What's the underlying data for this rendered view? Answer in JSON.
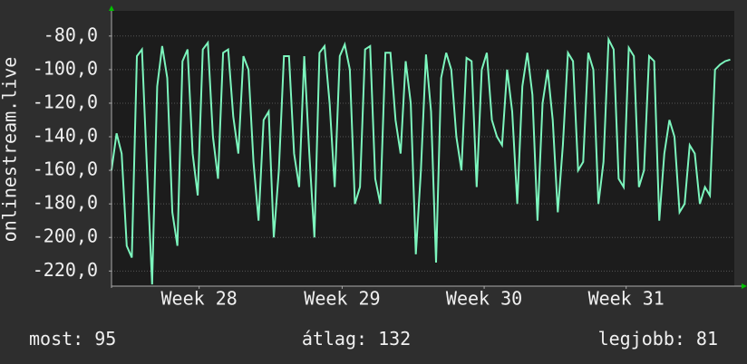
{
  "chart_data": {
    "type": "line",
    "y_label": "onlinestream.live",
    "color": "#7cf5bd",
    "grid": true,
    "xlim": [
      0,
      30.7
    ],
    "xticks": [
      {
        "value": 4.32,
        "label": "Week 28"
      },
      {
        "value": 11.37,
        "label": "Week 29"
      },
      {
        "value": 18.37,
        "label": "Week 30"
      },
      {
        "value": 25.37,
        "label": "Week 31"
      }
    ],
    "ylim": [
      -229,
      -65
    ],
    "yticks": [
      {
        "value": -80,
        "label": "-80,0"
      },
      {
        "value": -100,
        "label": "-100,0"
      },
      {
        "value": -120,
        "label": "-120,0"
      },
      {
        "value": -140,
        "label": "-140,0"
      },
      {
        "value": -160,
        "label": "-160,0"
      },
      {
        "value": -180,
        "label": "-180,0"
      },
      {
        "value": -200,
        "label": "-200,0"
      },
      {
        "value": -220,
        "label": "-220,0"
      }
    ],
    "x": [
      0,
      0.25,
      0.5,
      0.75,
      1,
      1.25,
      1.5,
      1.75,
      2,
      2.25,
      2.5,
      2.75,
      3,
      3.25,
      3.5,
      3.75,
      4,
      4.25,
      4.5,
      4.75,
      5,
      5.25,
      5.5,
      5.75,
      6,
      6.25,
      6.5,
      6.75,
      7,
      7.25,
      7.5,
      7.75,
      8,
      8.25,
      8.5,
      8.75,
      9,
      9.25,
      9.5,
      9.75,
      10,
      10.25,
      10.5,
      10.75,
      11,
      11.25,
      11.5,
      11.75,
      12,
      12.25,
      12.5,
      12.75,
      13,
      13.25,
      13.5,
      13.75,
      14,
      14.25,
      14.5,
      14.75,
      15,
      15.25,
      15.5,
      15.75,
      16,
      16.25,
      16.5,
      16.75,
      17,
      17.25,
      17.5,
      17.75,
      18,
      18.25,
      18.5,
      18.75,
      19,
      19.25,
      19.5,
      19.75,
      20,
      20.25,
      20.5,
      20.75,
      21,
      21.25,
      21.5,
      21.75,
      22,
      22.25,
      22.5,
      22.75,
      23,
      23.25,
      23.5,
      23.75,
      24,
      24.25,
      24.5,
      24.75,
      25,
      25.25,
      25.5,
      25.75,
      26,
      26.25,
      26.5,
      26.75,
      27,
      27.25,
      27.5,
      27.75,
      28,
      28.25,
      28.5,
      28.75,
      29,
      29.25,
      29.5,
      29.75,
      30,
      30.25,
      30.5
    ],
    "values": [
      -160,
      -138,
      -150,
      -205,
      -212,
      -92,
      -88,
      -160,
      -228,
      -110,
      -86,
      -105,
      -185,
      -205,
      -95,
      -88,
      -150,
      -175,
      -88,
      -84,
      -140,
      -165,
      -90,
      -88,
      -128,
      -150,
      -92,
      -100,
      -155,
      -190,
      -130,
      -125,
      -200,
      -160,
      -92,
      -92,
      -150,
      -170,
      -92,
      -150,
      -200,
      -90,
      -86,
      -120,
      -170,
      -92,
      -85,
      -100,
      -180,
      -170,
      -88,
      -86,
      -165,
      -180,
      -90,
      -90,
      -130,
      -150,
      -95,
      -120,
      -210,
      -160,
      -91,
      -125,
      -215,
      -105,
      -90,
      -100,
      -140,
      -160,
      -93,
      -95,
      -170,
      -100,
      -90,
      -130,
      -140,
      -145,
      -100,
      -125,
      -180,
      -110,
      -90,
      -115,
      -190,
      -120,
      -100,
      -130,
      -185,
      -145,
      -90,
      -95,
      -160,
      -155,
      -90,
      -100,
      -180,
      -155,
      -82,
      -88,
      -165,
      -170,
      -87,
      -92,
      -170,
      -160,
      -92,
      -95,
      -190,
      -150,
      -130,
      -140,
      -185,
      -180,
      -145,
      -150,
      -180,
      -170,
      -175,
      -100,
      -97,
      -95,
      -94
    ]
  },
  "stats": [
    {
      "label": "most:",
      "value": 95
    },
    {
      "label": "átlag:",
      "value": 132
    },
    {
      "label": "legjobb:",
      "value": 81
    }
  ]
}
